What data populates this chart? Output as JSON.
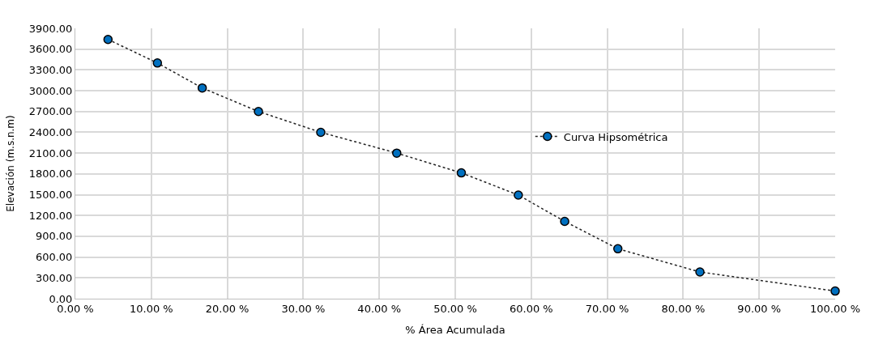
{
  "chart_data": {
    "type": "line",
    "xlabel": "% Área Acumulada",
    "ylabel": "Elevación (m.s.n.m)",
    "x": [
      4.3,
      10.8,
      16.7,
      24.1,
      32.3,
      42.3,
      50.8,
      58.3,
      64.4,
      71.4,
      82.2,
      100
    ],
    "series": [
      {
        "name": "Curva Hipsométrica",
        "color": "#0070c0",
        "values": [
          3740,
          3400,
          3040,
          2700,
          2400,
          2100,
          1815,
          1495,
          1115,
          720,
          385,
          110
        ]
      }
    ],
    "xlim": [
      0,
      100
    ],
    "xticks": [
      {
        "value": 0,
        "label": "0.00 %"
      },
      {
        "value": 10,
        "label": "10.00 %"
      },
      {
        "value": 20,
        "label": "20.00 %"
      },
      {
        "value": 30,
        "label": "30.00 %"
      },
      {
        "value": 40,
        "label": "40.00 %"
      },
      {
        "value": 50,
        "label": "50.00 %"
      },
      {
        "value": 60,
        "label": "60.00 %"
      },
      {
        "value": 70,
        "label": "70.00 %"
      },
      {
        "value": 80,
        "label": "80.00 %"
      },
      {
        "value": 90,
        "label": "90.00 %"
      },
      {
        "value": 100,
        "label": "100.00 %"
      }
    ],
    "ylim": [
      0,
      3900
    ],
    "yticks": [
      {
        "value": 0,
        "label": "0.00"
      },
      {
        "value": 300,
        "label": "300.00"
      },
      {
        "value": 600,
        "label": "600.00"
      },
      {
        "value": 900,
        "label": "900.00"
      },
      {
        "value": 1200,
        "label": "1200.00"
      },
      {
        "value": 1500,
        "label": "1500.00"
      },
      {
        "value": 1800,
        "label": "1800.00"
      },
      {
        "value": 2100,
        "label": "2100.00"
      },
      {
        "value": 2400,
        "label": "2400.00"
      },
      {
        "value": 2700,
        "label": "2700.00"
      },
      {
        "value": 3000,
        "label": "3000.00"
      },
      {
        "value": 3300,
        "label": "3300.00"
      },
      {
        "value": 3600,
        "label": "3600.00"
      },
      {
        "value": 3900,
        "label": "3900.00"
      }
    ],
    "grid": true,
    "legend": "right",
    "marker": "circle",
    "line_style": "dotted"
  }
}
